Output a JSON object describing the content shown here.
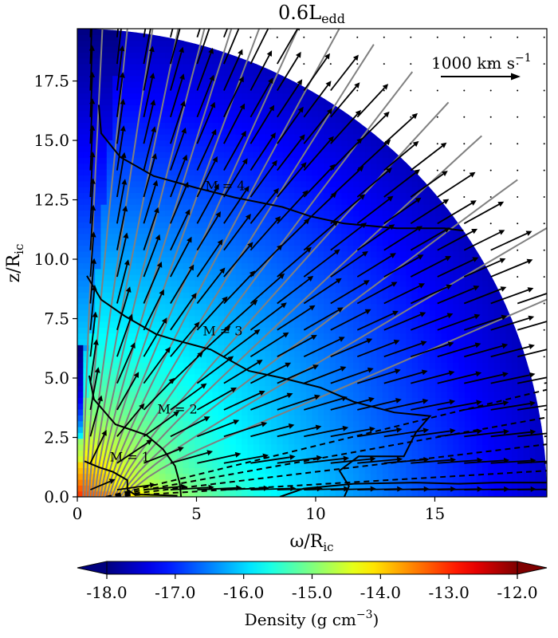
{
  "chart_data": {
    "type": "vector field over density map (quarter-disk wind simulation)",
    "title": "0.6L",
    "title_sub": "edd",
    "xlabel_symbol": "ω/R",
    "xlabel_sub": "ic",
    "ylabel_symbol": "z/R",
    "ylabel_sub": "ic",
    "xlim": [
      0,
      19.7
    ],
    "ylim": [
      0,
      19.7
    ],
    "x_ticks": [
      0,
      5,
      10,
      15
    ],
    "x_tick_labels": [
      "0",
      "5",
      "10",
      "15"
    ],
    "y_ticks": [
      0.0,
      2.5,
      5.0,
      7.5,
      10.0,
      12.5,
      15.0,
      17.5
    ],
    "y_tick_labels": [
      "0.0",
      "2.5",
      "5.0",
      "7.5",
      "10.0",
      "12.5",
      "15.0",
      "17.5"
    ],
    "domain_radius": 19.7,
    "reference_arrow": {
      "label_text": "1000 km s",
      "label_sup": "−1",
      "speed_km_s": 1000
    },
    "mach_contours": [
      {
        "label": "M = 1",
        "label_at": [
          2.2,
          1.5
        ],
        "points": [
          [
            0.3,
            1.5
          ],
          [
            0.9,
            1.25
          ],
          [
            1.5,
            1.05
          ],
          [
            2.1,
            0.7
          ],
          [
            2.1,
            0.3
          ],
          [
            2.4,
            0.1
          ],
          [
            3.2,
            0.08
          ],
          [
            4.2,
            0.05
          ]
        ]
      },
      {
        "label": "M = 2",
        "label_at": [
          4.2,
          3.5
        ],
        "points": [
          [
            0.5,
            5.1
          ],
          [
            0.7,
            4.1
          ],
          [
            1.6,
            3.05
          ],
          [
            2.9,
            2.6
          ],
          [
            3.6,
            2.0
          ],
          [
            4.1,
            1.3
          ],
          [
            4.3,
            0.55
          ],
          [
            4.35,
            0
          ]
        ]
      },
      {
        "label": "M = 3",
        "label_at": [
          6.1,
          6.8
        ],
        "points": [
          [
            0.4,
            9.3
          ],
          [
            1.0,
            8.3
          ],
          [
            2.0,
            7.6
          ],
          [
            3.3,
            6.85
          ],
          [
            4.1,
            6.6
          ],
          [
            5.6,
            6.2
          ],
          [
            7.2,
            5.3
          ],
          [
            8.6,
            5.0
          ],
          [
            10.2,
            4.6
          ],
          [
            11.6,
            4.0
          ],
          [
            13.3,
            3.55
          ],
          [
            14.8,
            3.4
          ],
          [
            14.2,
            2.7
          ],
          [
            13.7,
            1.7
          ],
          [
            11.8,
            1.7
          ],
          [
            11.0,
            1.1
          ],
          [
            11.4,
            0.45
          ],
          [
            11.2,
            0
          ]
        ]
      },
      {
        "label": "M = 4",
        "label_at": [
          6.2,
          12.9
        ],
        "points": [
          [
            0.9,
            16.5
          ],
          [
            1.0,
            15.3
          ],
          [
            1.8,
            14.3
          ],
          [
            3.2,
            13.5
          ],
          [
            5.0,
            13.0
          ],
          [
            6.6,
            12.6
          ],
          [
            8.6,
            12.2
          ],
          [
            9.8,
            11.8
          ],
          [
            11.2,
            11.5
          ],
          [
            13.4,
            11.3
          ],
          [
            15.4,
            11.3
          ],
          [
            16.2,
            11.2
          ]
        ]
      },
      {
        "label": "",
        "label_at": null,
        "points": [
          [
            8.5,
            0
          ],
          [
            9.5,
            0.35
          ],
          [
            11.6,
            0.55
          ],
          [
            14.2,
            0.6
          ],
          [
            16.0,
            0.55
          ],
          [
            17.6,
            0.6
          ],
          [
            19.7,
            0.6
          ]
        ]
      }
    ],
    "colorbar": {
      "label": "Density (g cm",
      "label_sup": "−3",
      "label_end": ")",
      "scale": "log10",
      "range": [
        -18.0,
        -12.0
      ],
      "ticks": [
        -18.0,
        -17.0,
        -16.0,
        -15.0,
        -14.0,
        -13.0,
        -12.0
      ],
      "tick_labels": [
        "-18.0",
        "-17.0",
        "-16.0",
        "-15.0",
        "-14.0",
        "-13.0",
        "-12.0"
      ],
      "colormap": "jet",
      "extend": "both"
    },
    "colormap_stops": [
      "#00007f",
      "#0000ff",
      "#007fff",
      "#00ffff",
      "#7fff7f",
      "#ffff00",
      "#ff7f00",
      "#ff0000",
      "#7f0000"
    ],
    "colors": {
      "arrow": "#000000",
      "streamline": "#808080",
      "contour": "#000000",
      "dashed_streamline": "#000000"
    }
  }
}
